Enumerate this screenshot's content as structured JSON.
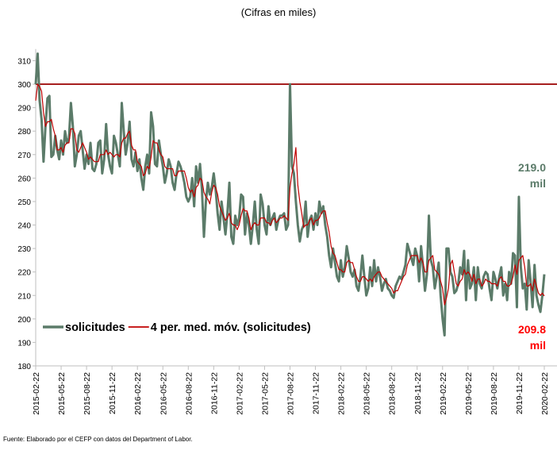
{
  "chart_data": {
    "type": "line",
    "subtitle": "(Cifras en miles)",
    "source": "Fuente: Elaborado por el CEFP con datos del Department of Labor.",
    "categories": [
      "2015-02-22",
      null,
      null,
      null,
      null,
      null,
      null,
      null,
      null,
      null,
      null,
      null,
      null,
      "2015-05-22",
      null,
      null,
      null,
      null,
      null,
      null,
      null,
      null,
      null,
      null,
      null,
      null,
      "2015-08-22",
      null,
      null,
      null,
      null,
      null,
      null,
      null,
      null,
      null,
      null,
      null,
      null,
      "2015-11-22",
      null,
      null,
      null,
      null,
      null,
      null,
      null,
      null,
      null,
      null,
      null,
      null,
      "2016-02-22",
      null,
      null,
      null,
      null,
      null,
      null,
      null,
      null,
      null,
      null,
      null,
      null,
      "2016-05-22",
      null,
      null,
      null,
      null,
      null,
      null,
      null,
      null,
      null,
      null,
      null,
      null,
      "2016-08-22",
      null,
      null,
      null,
      null,
      null,
      null,
      null,
      null,
      null,
      null,
      null,
      null,
      "2016-11-22",
      null,
      null,
      null,
      null,
      null,
      null,
      null,
      null,
      null,
      null,
      null,
      null,
      "2017-02-22",
      null,
      null,
      null,
      null,
      null,
      null,
      null,
      null,
      null,
      null,
      null,
      null,
      "2017-05-22",
      null,
      null,
      null,
      null,
      null,
      null,
      null,
      null,
      null,
      null,
      null,
      null,
      "2017-08-22",
      null,
      null,
      null,
      null,
      null,
      null,
      null,
      null,
      null,
      null,
      null,
      null,
      "2017-11-22",
      null,
      null,
      null,
      null,
      null,
      null,
      null,
      null,
      null,
      null,
      null,
      null,
      "2018-02-22",
      null,
      null,
      null,
      null,
      null,
      null,
      null,
      null,
      null,
      null,
      null,
      null,
      "2018-05-22",
      null,
      null,
      null,
      null,
      null,
      null,
      null,
      null,
      null,
      null,
      null,
      null,
      "2018-08-22",
      null,
      null,
      null,
      null,
      null,
      null,
      null,
      null,
      null,
      null,
      null,
      null,
      "2018-11-22",
      null,
      null,
      null,
      null,
      null,
      null,
      null,
      null,
      null,
      null,
      null,
      null,
      "2019-02-22",
      null,
      null,
      null,
      null,
      null,
      null,
      null,
      null,
      null,
      null,
      null,
      null,
      "2019-05-22",
      null,
      null,
      null,
      null,
      null,
      null,
      null,
      null,
      null,
      null,
      null,
      null,
      "2019-08-22",
      null,
      null,
      null,
      null,
      null,
      null,
      null,
      null,
      null,
      null,
      null,
      null,
      "2019-11-22",
      null,
      null,
      null,
      null,
      null,
      null,
      null,
      null,
      null,
      null,
      null,
      null,
      "2020-02-22"
    ],
    "series": [
      {
        "name": "solicitudes",
        "color": "#5b7b69",
        "width": 3,
        "values": [
          300,
          313,
          293,
          285,
          267,
          282,
          294,
          295,
          269,
          270,
          278,
          272,
          268,
          276,
          270,
          280,
          275,
          277,
          292,
          282,
          265,
          270,
          278,
          280,
          272,
          264,
          270,
          266,
          275,
          264,
          263,
          266,
          275,
          276,
          262,
          268,
          283,
          270,
          265,
          262,
          278,
          275,
          270,
          265,
          292,
          280,
          270,
          275,
          284,
          268,
          265,
          271,
          263,
          268,
          260,
          255,
          265,
          270,
          262,
          288,
          282,
          266,
          265,
          276,
          270,
          265,
          258,
          262,
          268,
          265,
          258,
          255,
          262,
          267,
          265,
          262,
          258,
          252,
          250,
          252,
          260,
          248,
          265,
          258,
          266,
          255,
          235,
          250,
          258,
          253,
          256,
          262,
          255,
          245,
          238,
          250,
          243,
          236,
          245,
          258,
          235,
          232,
          244,
          240,
          243,
          253,
          252,
          236,
          245,
          240,
          232,
          240,
          250,
          238,
          232,
          253,
          249,
          240,
          236,
          248,
          240,
          243,
          245,
          238,
          242,
          244,
          244,
          245,
          238,
          240,
          300,
          265,
          262,
          250,
          240,
          233,
          238,
          240,
          250,
          235,
          242,
          244,
          238,
          245,
          240,
          250,
          245,
          248,
          240,
          235,
          227,
          222,
          230,
          224,
          218,
          216,
          225,
          218,
          222,
          231,
          226,
          220,
          218,
          221,
          214,
          212,
          218,
          227,
          218,
          210,
          213,
          222,
          214,
          225,
          216,
          222,
          218,
          212,
          215,
          217,
          213,
          212,
          210,
          209,
          214,
          216,
          218,
          217,
          220,
          223,
          232,
          229,
          226,
          223,
          230,
          227,
          216,
          231,
          222,
          212,
          219,
          244,
          225,
          222,
          213,
          218,
          224,
          210,
          200,
          193,
          230,
          230,
          220,
          218,
          211,
          212,
          215,
          222,
          219,
          229,
          208,
          225,
          213,
          215,
          222,
          208,
          222,
          215,
          213,
          218,
          220,
          219,
          213,
          208,
          220,
          217,
          213,
          218,
          222,
          210,
          215,
          208,
          220,
          215,
          228,
          227,
          205,
          252,
          222,
          213,
          215,
          204,
          225,
          216,
          205,
          223,
          210,
          206,
          203,
          210,
          219
        ]
      },
      {
        "name": "4 per. med. móv. (solicitudes)",
        "color": "#c00000",
        "width": 1.2,
        "values": [
          293,
          300,
          299,
          297,
          288,
          282,
          284,
          284,
          285,
          281,
          278,
          272,
          272,
          273,
          271,
          274,
          275,
          275,
          281,
          281,
          279,
          272,
          271,
          273,
          275,
          273,
          271,
          268,
          269,
          268,
          267,
          267,
          267,
          270,
          270,
          270,
          272,
          270,
          271,
          270,
          269,
          270,
          270,
          269,
          275,
          277,
          277,
          279,
          280,
          274,
          272,
          272,
          267,
          266,
          265,
          261,
          262,
          265,
          264,
          269,
          276,
          275,
          275,
          272,
          270,
          269,
          265,
          264,
          264,
          264,
          264,
          261,
          261,
          263,
          263,
          263,
          263,
          260,
          256,
          254,
          255,
          252,
          256,
          257,
          260,
          259,
          254,
          252,
          251,
          249,
          254,
          257,
          256,
          253,
          248,
          246,
          244,
          242,
          243,
          245,
          241,
          240,
          240,
          238,
          240,
          244,
          247,
          246,
          246,
          243,
          238,
          240,
          241,
          240,
          240,
          243,
          243,
          243,
          241,
          241,
          240,
          242,
          243,
          241,
          242,
          243,
          243,
          244,
          243,
          242,
          256,
          262,
          266,
          273,
          257,
          250,
          245,
          239,
          240,
          240,
          242,
          243,
          240,
          242,
          242,
          243,
          245,
          246,
          246,
          241,
          237,
          231,
          228,
          227,
          224,
          221,
          221,
          220,
          220,
          224,
          225,
          224,
          224,
          221,
          218,
          216,
          216,
          218,
          218,
          217,
          216,
          217,
          216,
          218,
          219,
          220,
          220,
          218,
          217,
          216,
          215,
          214,
          213,
          211,
          212,
          212,
          214,
          216,
          218,
          219,
          223,
          225,
          227,
          227,
          227,
          227,
          224,
          226,
          224,
          220,
          220,
          225,
          226,
          227,
          221,
          220,
          219,
          216,
          213,
          206,
          209,
          213,
          223,
          225,
          220,
          215,
          214,
          216,
          217,
          221,
          219,
          220,
          219,
          216,
          219,
          215,
          217,
          217,
          214,
          215,
          217,
          216,
          216,
          215,
          215,
          215,
          214,
          217,
          218,
          216,
          216,
          214,
          214,
          215,
          218,
          223,
          219,
          225,
          226,
          227,
          222,
          214,
          214,
          215,
          212,
          217,
          214,
          211,
          210,
          211,
          209.8
        ]
      }
    ],
    "reference_line": {
      "value": 300,
      "color": "#a01010"
    },
    "annotations": [
      {
        "lines": [
          "219.0",
          "mil"
        ],
        "color": "#5b7b69"
      },
      {
        "lines": [
          "209.8",
          "mil"
        ],
        "color": "#ff0000"
      }
    ],
    "ylim": [
      180,
      315
    ],
    "yticks": [
      180,
      190,
      200,
      210,
      220,
      230,
      240,
      250,
      260,
      270,
      280,
      290,
      300,
      310
    ]
  }
}
